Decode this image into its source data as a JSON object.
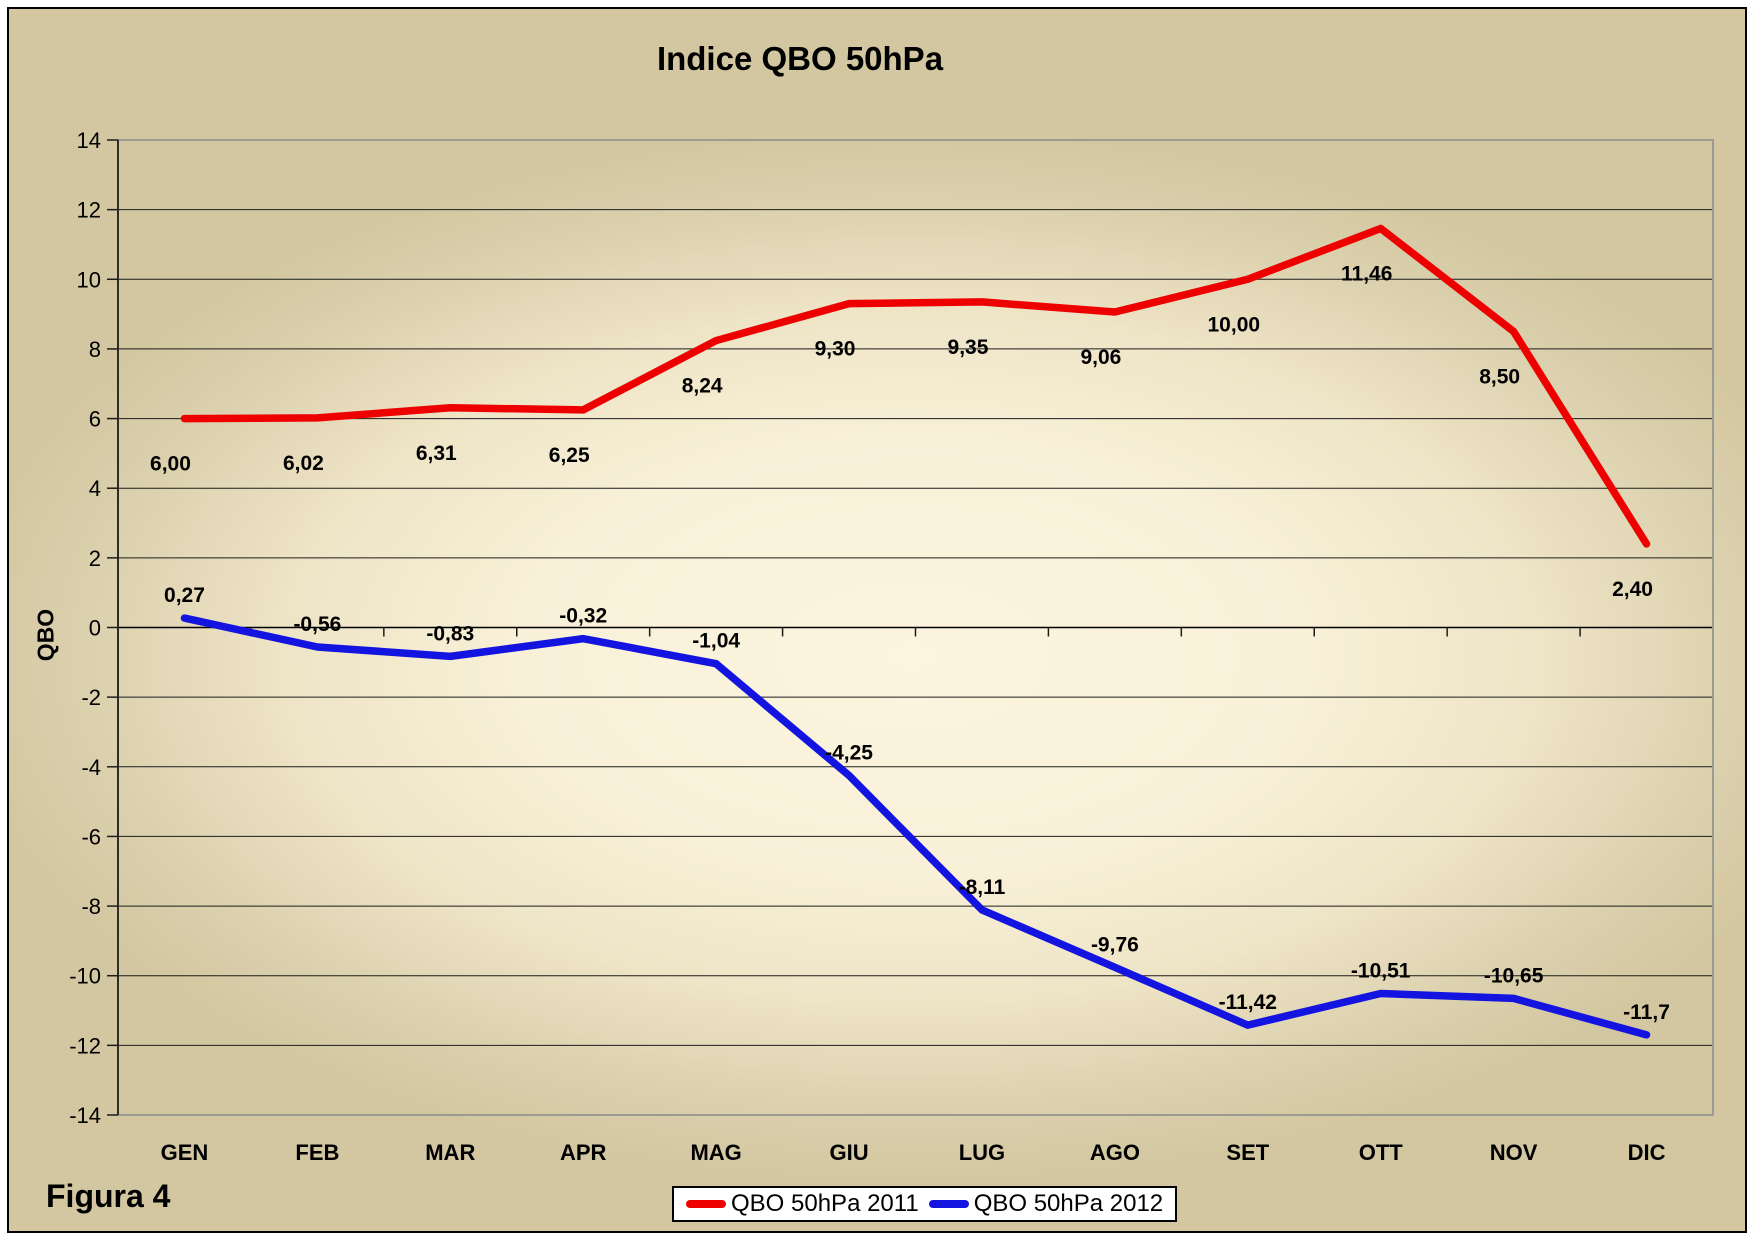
{
  "figure_caption": "Figura 4",
  "chart_data": {
    "type": "line",
    "title": "Indice QBO 50hPa",
    "xlabel": "",
    "ylabel": "QBO",
    "categories": [
      "GEN",
      "FEB",
      "MAR",
      "APR",
      "MAG",
      "GIU",
      "LUG",
      "AGO",
      "SET",
      "OTT",
      "NOV",
      "DIC"
    ],
    "series": [
      {
        "name": "QBO 50hPa 2011",
        "color": "#ee0000",
        "values": [
          6.0,
          6.02,
          6.31,
          6.25,
          8.24,
          9.3,
          9.35,
          9.06,
          10.0,
          11.46,
          8.5,
          2.4
        ],
        "labels": [
          "6,00",
          "6,02",
          "6,31",
          "6,25",
          "8,24",
          "9,30",
          "9,35",
          "9,06",
          "10,00",
          "11,46",
          "8,50",
          "2,40"
        ],
        "label_position": "below"
      },
      {
        "name": "QBO 50hPa 2012",
        "color": "#1414e0",
        "values": [
          0.27,
          -0.56,
          -0.83,
          -0.32,
          -1.04,
          -4.25,
          -8.11,
          -9.76,
          -11.42,
          -10.51,
          -10.65,
          -11.7
        ],
        "labels": [
          "0,27",
          "-0,56",
          "-0,83",
          "-0,32",
          "-1,04",
          "-4,25",
          "-8,11",
          "-9,76",
          "-11,42",
          "-10,51",
          "-10,65",
          "-11,7"
        ],
        "label_position": "above"
      }
    ],
    "ylim": [
      -14,
      14
    ],
    "ytick_step": 2,
    "grid": true,
    "legend_position": "bottom",
    "colors": {
      "background_tan": "#d2c7a0",
      "background_center": "#fcf5df",
      "gridline": "#1c1c1c",
      "plot_border": "#9b9b94"
    }
  }
}
